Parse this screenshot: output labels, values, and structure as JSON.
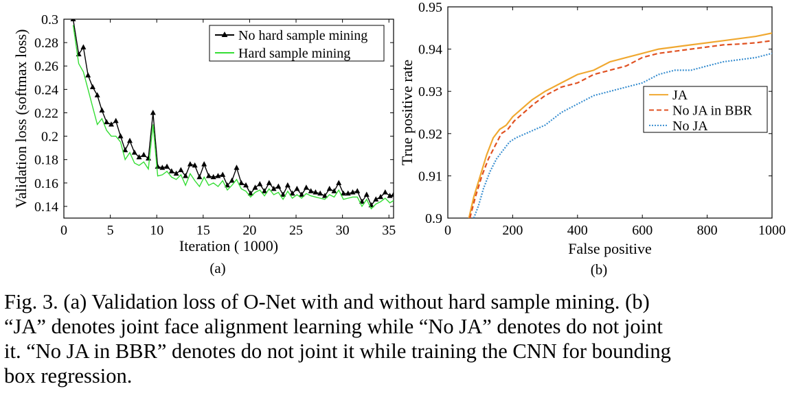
{
  "chart_data": [
    {
      "type": "line",
      "panel_label": "(a)",
      "xlabel": "Iteration (  1000)",
      "ylabel": "Validation loss (softmax loss)",
      "xlim": [
        0,
        35.5
      ],
      "ylim": [
        0.13,
        0.3
      ],
      "xticks": [
        0,
        5,
        10,
        15,
        20,
        25,
        30,
        35
      ],
      "yticks": [
        0.14,
        0.16,
        0.18,
        0.2,
        0.22,
        0.24,
        0.26,
        0.28,
        0.3
      ],
      "grid": false,
      "legend_position": "top-right",
      "series": [
        {
          "name": "No hard sample mining",
          "color": "#000000",
          "marker": "triangle",
          "x": [
            1,
            1.6,
            2.1,
            2.6,
            3.1,
            3.6,
            4.1,
            4.6,
            5.1,
            5.6,
            6.1,
            6.6,
            7.1,
            7.6,
            8.1,
            8.6,
            9.1,
            9.6,
            10.1,
            10.6,
            11.1,
            11.6,
            12.1,
            12.6,
            13.1,
            13.6,
            14.1,
            14.6,
            15.1,
            15.6,
            16.1,
            16.6,
            17.1,
            17.6,
            18.1,
            18.6,
            19.1,
            19.6,
            20.1,
            20.6,
            21.1,
            21.6,
            22.1,
            22.6,
            23.1,
            23.6,
            24.1,
            24.6,
            25.1,
            25.6,
            26.1,
            26.6,
            27.1,
            27.6,
            28.1,
            28.6,
            29.1,
            29.6,
            30.1,
            30.6,
            31.1,
            31.6,
            32.1,
            32.6,
            33.1,
            33.6,
            34.1,
            34.6,
            35.1,
            35.5
          ],
          "y": [
            0.3,
            0.27,
            0.276,
            0.252,
            0.242,
            0.235,
            0.222,
            0.212,
            0.21,
            0.213,
            0.2,
            0.188,
            0.196,
            0.186,
            0.182,
            0.184,
            0.181,
            0.22,
            0.174,
            0.173,
            0.174,
            0.17,
            0.168,
            0.171,
            0.166,
            0.176,
            0.175,
            0.165,
            0.176,
            0.166,
            0.165,
            0.166,
            0.167,
            0.158,
            0.162,
            0.173,
            0.16,
            0.158,
            0.151,
            0.156,
            0.159,
            0.153,
            0.16,
            0.155,
            0.157,
            0.15,
            0.158,
            0.151,
            0.155,
            0.15,
            0.156,
            0.153,
            0.152,
            0.151,
            0.149,
            0.155,
            0.153,
            0.16,
            0.151,
            0.151,
            0.152,
            0.153,
            0.144,
            0.15,
            0.141,
            0.146,
            0.148,
            0.152,
            0.149,
            0.15
          ]
        },
        {
          "name": "Hard sample mining",
          "color": "#33dd33",
          "marker": "none",
          "x": [
            1,
            1.6,
            2.1,
            2.6,
            3.1,
            3.6,
            4.1,
            4.6,
            5.1,
            5.6,
            6.1,
            6.6,
            7.1,
            7.6,
            8.1,
            8.6,
            9.1,
            9.6,
            10.1,
            10.6,
            11.1,
            11.6,
            12.1,
            12.6,
            13.1,
            13.6,
            14.1,
            14.6,
            15.1,
            15.6,
            16.1,
            16.6,
            17.1,
            17.6,
            18.1,
            18.6,
            19.1,
            19.6,
            20.1,
            20.6,
            21.1,
            21.6,
            22.1,
            22.6,
            23.1,
            23.6,
            24.1,
            24.6,
            25.1,
            25.6,
            26.1,
            26.6,
            27.1,
            27.6,
            28.1,
            28.6,
            29.1,
            29.6,
            30.1,
            30.6,
            31.1,
            31.6,
            32.1,
            32.6,
            33.1,
            33.6,
            34.1,
            34.6,
            35.1,
            35.5
          ],
          "y": [
            0.295,
            0.262,
            0.255,
            0.24,
            0.225,
            0.21,
            0.215,
            0.205,
            0.2,
            0.2,
            0.195,
            0.18,
            0.186,
            0.177,
            0.175,
            0.178,
            0.172,
            0.21,
            0.166,
            0.167,
            0.17,
            0.165,
            0.163,
            0.167,
            0.158,
            0.168,
            0.162,
            0.157,
            0.165,
            0.158,
            0.16,
            0.157,
            0.162,
            0.154,
            0.158,
            0.163,
            0.155,
            0.153,
            0.148,
            0.152,
            0.154,
            0.149,
            0.155,
            0.15,
            0.152,
            0.146,
            0.153,
            0.147,
            0.15,
            0.147,
            0.151,
            0.149,
            0.148,
            0.147,
            0.146,
            0.15,
            0.148,
            0.154,
            0.146,
            0.147,
            0.148,
            0.148,
            0.14,
            0.146,
            0.138,
            0.142,
            0.144,
            0.147,
            0.143,
            0.145
          ]
        }
      ]
    },
    {
      "type": "line",
      "panel_label": "(b)",
      "xlabel": "False positive",
      "ylabel": "True positive rate",
      "xlim": [
        0,
        1000
      ],
      "ylim": [
        0.9,
        0.95
      ],
      "xticks": [
        0,
        200,
        400,
        600,
        800,
        1000
      ],
      "yticks": [
        0.9,
        0.91,
        0.92,
        0.93,
        0.94,
        0.95
      ],
      "grid": false,
      "legend_position": "center-right",
      "series": [
        {
          "name": "JA",
          "color": "#f0a830",
          "style": "solid",
          "x": [
            65,
            80,
            100,
            120,
            140,
            160,
            180,
            200,
            230,
            260,
            300,
            350,
            400,
            450,
            500,
            550,
            600,
            650,
            700,
            750,
            800,
            850,
            900,
            950,
            1000
          ],
          "y": [
            0.9,
            0.905,
            0.91,
            0.915,
            0.919,
            0.921,
            0.922,
            0.924,
            0.926,
            0.928,
            0.93,
            0.932,
            0.934,
            0.935,
            0.937,
            0.938,
            0.939,
            0.94,
            0.9405,
            0.941,
            0.9415,
            0.942,
            0.9425,
            0.943,
            0.9438
          ]
        },
        {
          "name": "No JA in BBR",
          "color": "#e05020",
          "style": "dashed",
          "x": [
            68,
            85,
            105,
            125,
            145,
            165,
            185,
            205,
            235,
            265,
            300,
            350,
            400,
            450,
            500,
            550,
            600,
            650,
            700,
            750,
            800,
            850,
            900,
            950,
            1000
          ],
          "y": [
            0.9,
            0.905,
            0.91,
            0.914,
            0.917,
            0.92,
            0.921,
            0.923,
            0.925,
            0.927,
            0.929,
            0.931,
            0.932,
            0.934,
            0.935,
            0.936,
            0.938,
            0.939,
            0.9395,
            0.94,
            0.9405,
            0.941,
            0.9412,
            0.9415,
            0.942
          ]
        },
        {
          "name": "No JA",
          "color": "#3a8fd0",
          "style": "dotted",
          "x": [
            80,
            95,
            110,
            130,
            150,
            170,
            190,
            210,
            240,
            270,
            300,
            350,
            400,
            450,
            500,
            550,
            600,
            650,
            700,
            750,
            800,
            850,
            900,
            950,
            1000
          ],
          "y": [
            0.9,
            0.903,
            0.907,
            0.911,
            0.914,
            0.916,
            0.918,
            0.919,
            0.92,
            0.921,
            0.922,
            0.925,
            0.927,
            0.929,
            0.93,
            0.931,
            0.932,
            0.934,
            0.935,
            0.935,
            0.936,
            0.937,
            0.9375,
            0.938,
            0.939
          ]
        }
      ]
    }
  ],
  "caption": {
    "line1": "Fig. 3.   (a) Validation loss of O-Net with and without hard sample mining. (b)",
    "line2": "“JA” denotes joint face alignment learning while “No JA” denotes do not joint",
    "line3": "it. “No JA in BBR” denotes do not joint it while training the CNN for bounding",
    "line4": "box regression."
  }
}
